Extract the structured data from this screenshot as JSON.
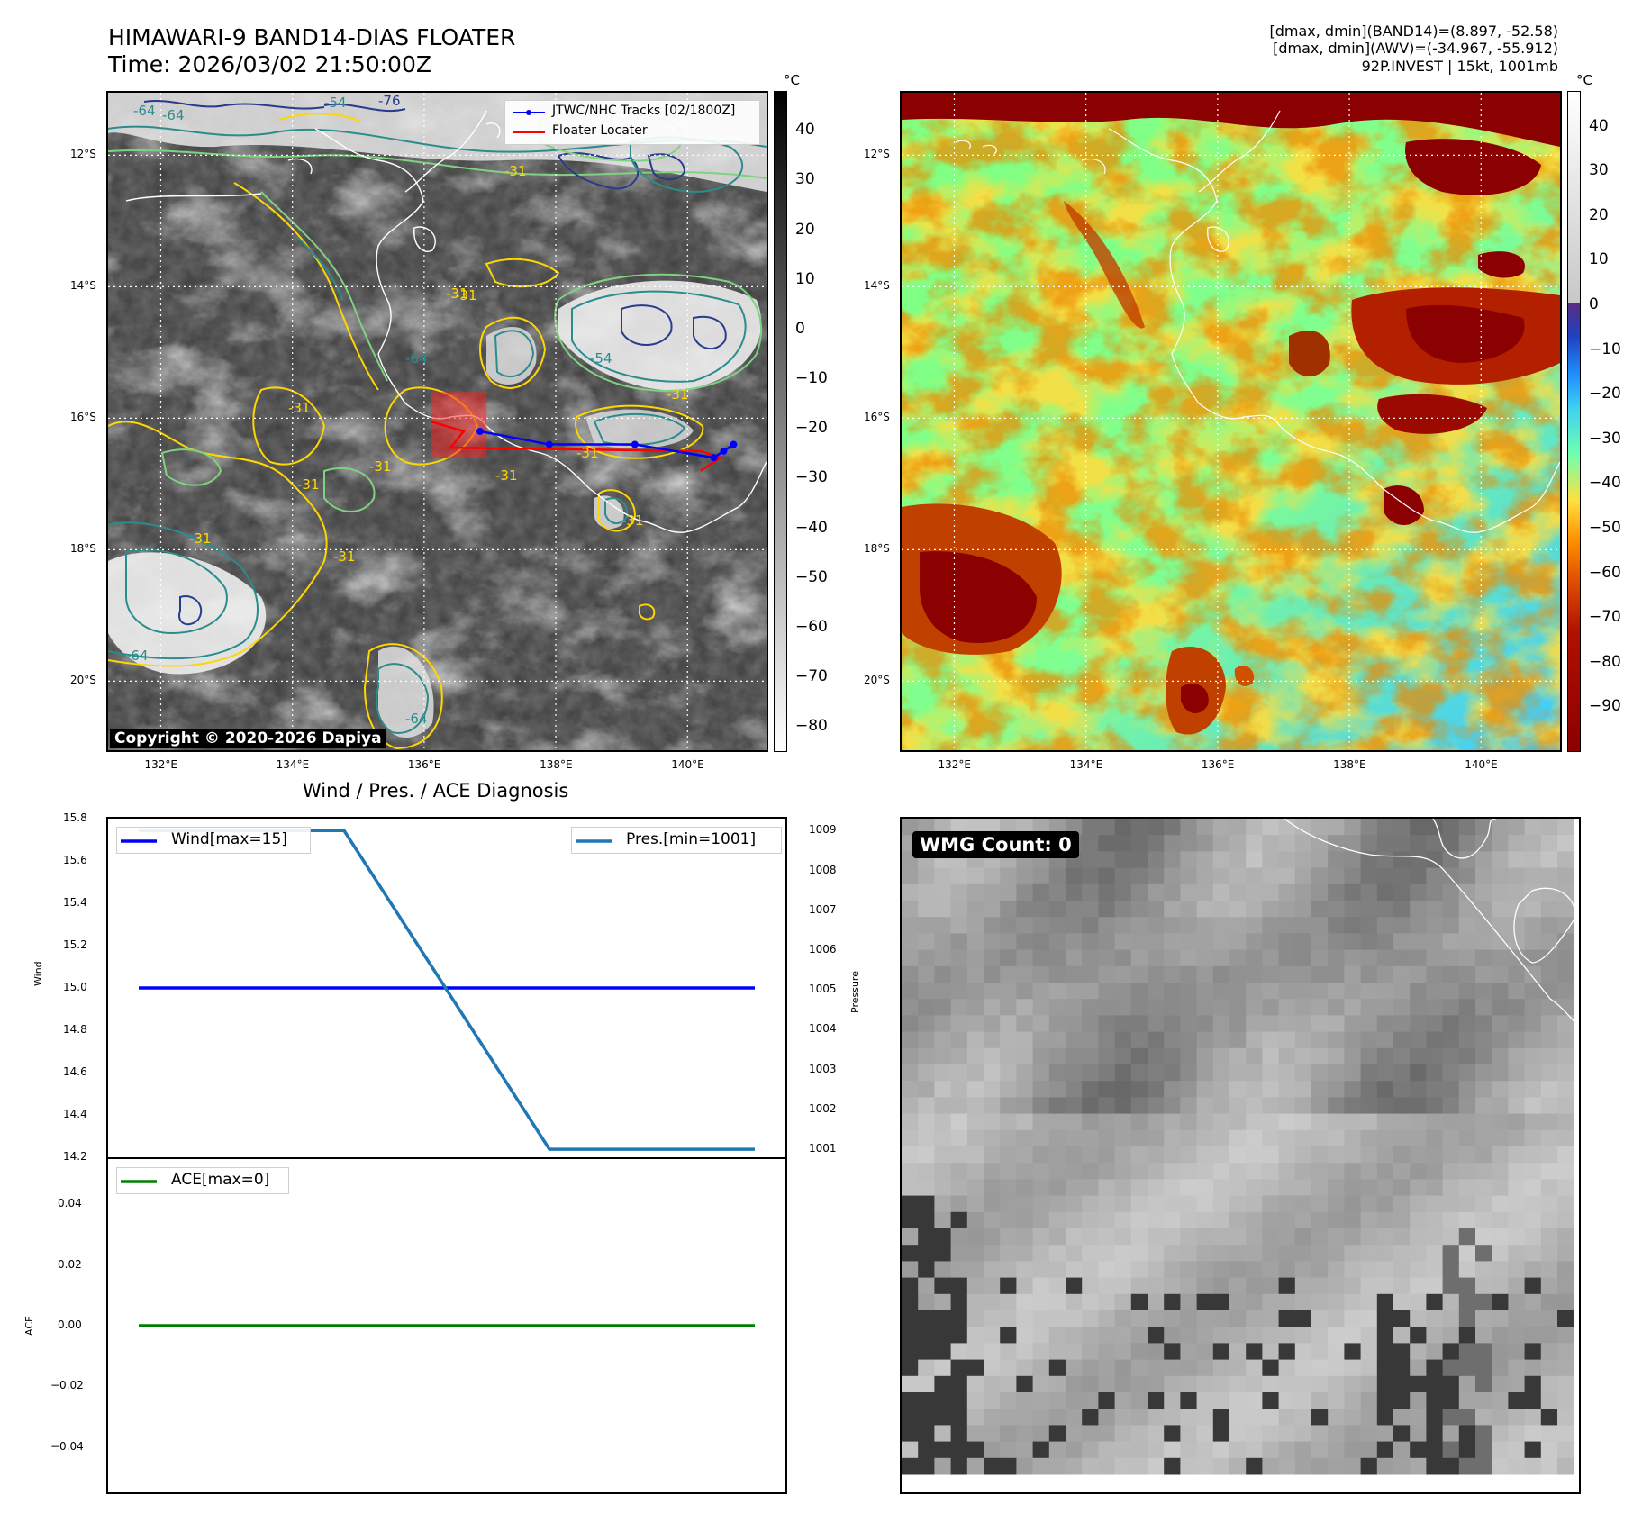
{
  "header": {
    "title_line1": "HIMAWARI-9 BAND14-DIAS FLOATER",
    "title_line2": "Time: 2026/03/02 21:50:00Z",
    "info_line1": "[dmax, dmin](BAND14)=(8.897, -52.58)",
    "info_line2": "[dmax, dmin](AWV)=(-34.967, -55.912)",
    "info_line3": "92P.INVEST | 15kt, 1001mb"
  },
  "maps": {
    "lat_labels": [
      "12°S",
      "14°S",
      "16°S",
      "18°S",
      "20°S"
    ],
    "lat_values": [
      -12,
      -14,
      -16,
      -18,
      -20
    ],
    "lon_labels": [
      "132°E",
      "134°E",
      "136°E",
      "138°E",
      "140°E"
    ],
    "lon_values": [
      132,
      134,
      136,
      138,
      140
    ],
    "lat_range": [
      -21.05,
      -11.05
    ],
    "lon_range": [
      131.2,
      141.2
    ],
    "copyright": "Copyright © 2020-2026 Dapiya",
    "legend": {
      "track_label": "JTWC/NHC Tracks [02/1800Z]",
      "locator_label": "Floater Locater",
      "track_color": "#0000ff",
      "locator_color": "#ff0000"
    },
    "track_points": [
      {
        "lon": 136.85,
        "lat": -16.2
      },
      {
        "lon": 137.9,
        "lat": -16.4
      },
      {
        "lon": 139.2,
        "lat": -16.4
      },
      {
        "lon": 140.4,
        "lat": -16.6
      },
      {
        "lon": 140.55,
        "lat": -16.5
      },
      {
        "lon": 140.7,
        "lat": -16.4
      }
    ],
    "contour_labels": [
      "-64",
      "-54",
      "-76",
      "-64",
      "-31",
      "-31",
      "-54",
      "-64",
      "-31",
      "-31",
      "-31",
      "-31",
      "-31",
      "-31",
      "-31",
      "-31",
      "-64",
      "-64",
      "-31",
      "-31"
    ]
  },
  "colorbars": {
    "unit": "°C",
    "left_ticks": [
      "40",
      "30",
      "20",
      "10",
      "0",
      "−10",
      "−20",
      "−30",
      "−40",
      "−50",
      "−60",
      "−70",
      "−80"
    ],
    "left_values": [
      40,
      30,
      20,
      10,
      0,
      -10,
      -20,
      -30,
      -40,
      -50,
      -60,
      -70,
      -80
    ],
    "left_range": [
      48,
      -85
    ],
    "right_ticks": [
      "40",
      "30",
      "20",
      "10",
      "0",
      "−10",
      "−20",
      "−30",
      "−40",
      "−50",
      "−60",
      "−70",
      "−80",
      "−90"
    ],
    "right_values": [
      40,
      30,
      20,
      10,
      0,
      -10,
      -20,
      -30,
      -40,
      -50,
      -60,
      -70,
      -80,
      -90
    ],
    "right_range": [
      48,
      -100
    ]
  },
  "diagnosis": {
    "title": "Wind / Pres. / ACE Diagnosis",
    "wind_legend": "Wind[max=15]",
    "pres_legend": "Pres.[min=1001]",
    "ace_legend": "ACE[max=0]",
    "wind_axis_label": "Wind",
    "pres_axis_label": "Pressure",
    "ace_axis_label": "ACE",
    "wind_ticks": [
      "15.8",
      "15.6",
      "15.4",
      "15.2",
      "15.0",
      "14.8",
      "14.6",
      "14.4",
      "14.2"
    ],
    "pres_ticks": [
      "1009",
      "1008",
      "1007",
      "1006",
      "1005",
      "1004",
      "1003",
      "1002",
      "1001"
    ],
    "ace_ticks": [
      "0.04",
      "0.02",
      "0.00",
      "−0.02",
      "−0.04"
    ],
    "wind_color": "#0000ff",
    "pres_color": "#1f77b4",
    "ace_color": "#008000"
  },
  "wmg": {
    "label": "WMG Count: 0"
  },
  "chart_data": [
    {
      "type": "line",
      "series": [
        {
          "name": "Wind[max=15]",
          "x": [
            0,
            1,
            2,
            3
          ],
          "values": [
            15,
            15,
            15,
            15
          ]
        },
        {
          "name": "Pres.[min=1001]",
          "x": [
            0,
            1,
            2,
            3
          ],
          "values": [
            1009,
            1009,
            1001,
            1001
          ]
        }
      ],
      "title": "Wind / Pres. / ACE Diagnosis",
      "ylabel": "Wind",
      "y2label": "Pressure",
      "ylim": [
        14.2,
        15.8
      ],
      "y2lim": [
        1000.8,
        1009.3
      ]
    },
    {
      "type": "line",
      "series": [
        {
          "name": "ACE[max=0]",
          "x": [
            0,
            1,
            2,
            3
          ],
          "values": [
            0,
            0,
            0,
            0
          ]
        }
      ],
      "ylabel": "ACE",
      "ylim": [
        -0.055,
        0.055
      ]
    }
  ]
}
